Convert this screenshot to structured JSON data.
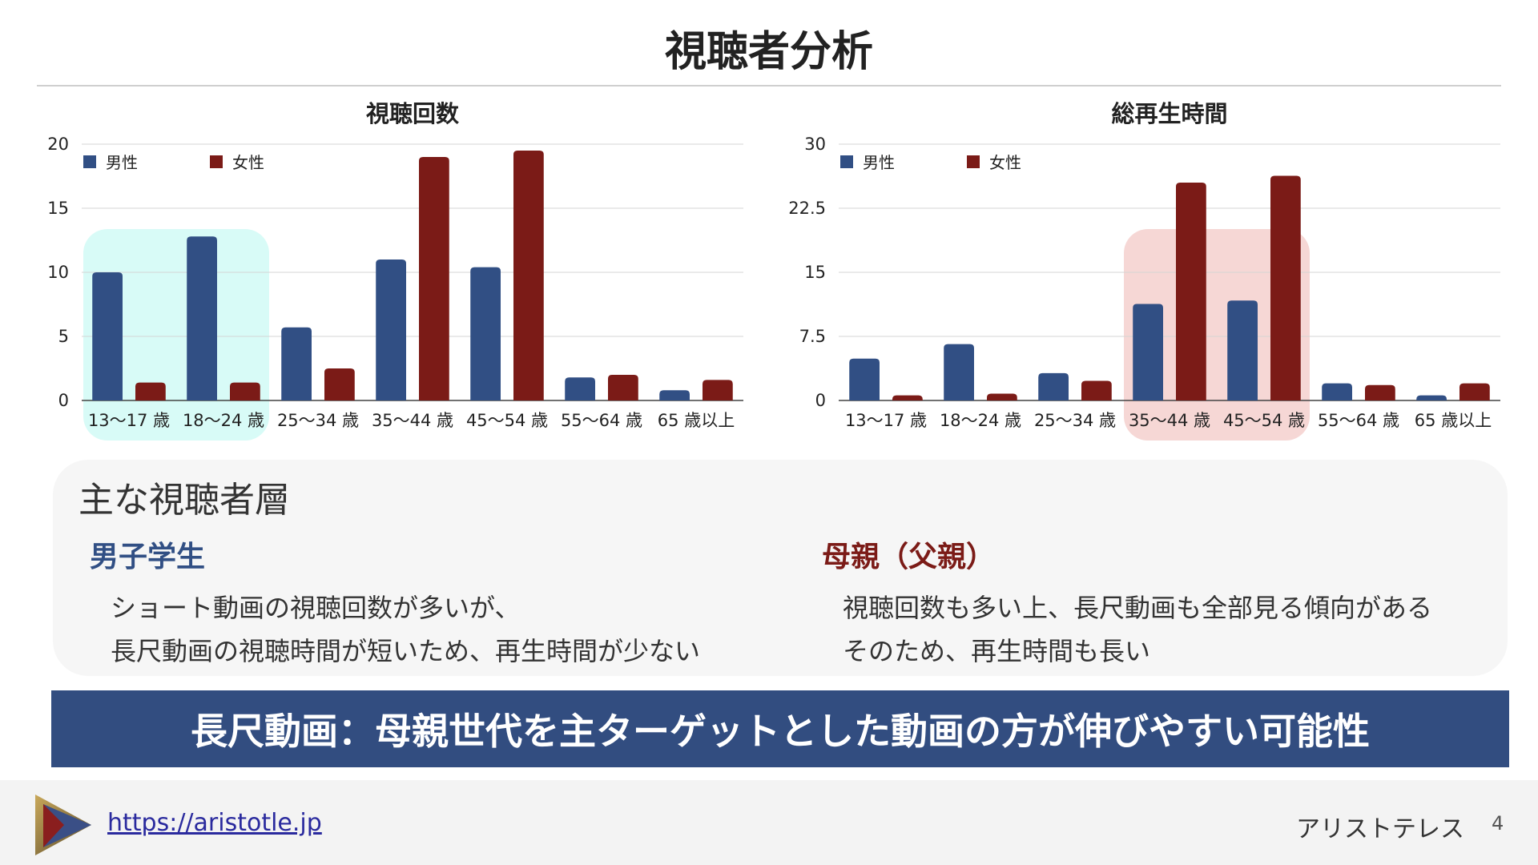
{
  "title": "視聴者分析",
  "legend": {
    "male": "男性",
    "female": "女性"
  },
  "colors": {
    "male": "#314f84",
    "female": "#7b1b17",
    "highlight_left": "#d8fbf7",
    "highlight_right": "#f6d7d5",
    "banner": "#324d80"
  },
  "chart_data": [
    {
      "type": "bar",
      "title": "視聴回数",
      "categories": [
        "13〜17 歳",
        "18〜24 歳",
        "25〜34 歳",
        "35〜44 歳",
        "45〜54 歳",
        "55〜64 歳",
        "65 歳以上"
      ],
      "series": [
        {
          "name": "男性",
          "values": [
            10,
            12.8,
            5.7,
            11,
            10.4,
            1.8,
            0.8
          ]
        },
        {
          "name": "女性",
          "values": [
            1.4,
            1.4,
            2.5,
            19,
            19.5,
            2,
            1.6
          ]
        }
      ],
      "ylim": [
        0,
        20
      ],
      "yticks": [
        "0",
        "5",
        "10",
        "15",
        "20"
      ],
      "highlight_categories": [
        0,
        1
      ],
      "grid": true,
      "legend_position": "top-left"
    },
    {
      "type": "bar",
      "title": "総再生時間",
      "categories": [
        "13〜17 歳",
        "18〜24 歳",
        "25〜34 歳",
        "35〜44 歳",
        "45〜54 歳",
        "55〜64 歳",
        "65 歳以上"
      ],
      "series": [
        {
          "name": "男性",
          "values": [
            4.9,
            6.6,
            3.2,
            11.3,
            11.7,
            2,
            0.6
          ]
        },
        {
          "name": "女性",
          "values": [
            0.6,
            0.8,
            2.3,
            25.5,
            26.3,
            1.8,
            2
          ]
        }
      ],
      "ylim": [
        0,
        30
      ],
      "yticks": [
        "0",
        "7.5",
        "15",
        "22.5",
        "30"
      ],
      "highlight_categories": [
        3,
        4
      ],
      "grid": true,
      "legend_position": "top-left"
    }
  ],
  "summary": {
    "heading": "主な視聴者層",
    "left": {
      "title": "男子学生",
      "lines": [
        "ショート動画の視聴回数が多いが、",
        "長尺動画の視聴時間が短いため、再生時間が少ない"
      ]
    },
    "right": {
      "title": "母親（父親）",
      "lines": [
        "視聴回数も多い上、長尺動画も全部見る傾向がある",
        "そのため、再生時間も長い"
      ]
    }
  },
  "banner": "長尺動画：母親世代を主ターゲットとした動画の方が伸びやすい可能性",
  "footer": {
    "url": "https://aristotle.jp",
    "brand": "アリストテレス",
    "page": "4"
  }
}
